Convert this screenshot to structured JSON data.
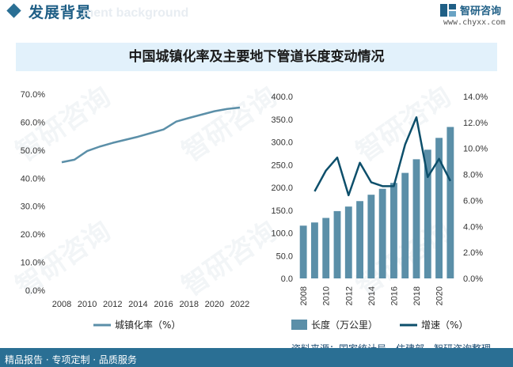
{
  "header": {
    "title": "发展背景",
    "ghost_text": "ment background",
    "logo_text": "智研咨询",
    "logo_url": "www.chyxx.com"
  },
  "watermark": "智研咨询",
  "chart_title": "中国城镇化率及主要地下管道长度变动情况",
  "colors": {
    "accent": "#2a6f94",
    "line_urban": "#5b8fa8",
    "bar": "#5b8fa8",
    "line_growth": "#0d4f6b"
  },
  "chart_data": [
    {
      "type": "line",
      "x": [
        2008,
        2009,
        2010,
        2011,
        2012,
        2013,
        2014,
        2015,
        2016,
        2017,
        2018,
        2019,
        2020,
        2021,
        2022
      ],
      "x_ticks": [
        "2008",
        "2010",
        "2012",
        "2014",
        "2016",
        "2018",
        "2020",
        "2022"
      ],
      "y_ticks": [
        "0.0%",
        "10.0%",
        "20.0%",
        "30.0%",
        "40.0%",
        "50.0%",
        "60.0%",
        "70.0%"
      ],
      "ylim": [
        0,
        70
      ],
      "series": [
        {
          "name": "城镇化率（%）",
          "values": [
            45.7,
            46.6,
            49.7,
            51.3,
            52.6,
            53.7,
            54.8,
            56.1,
            57.4,
            60.2,
            61.5,
            62.7,
            63.9,
            64.7,
            65.2
          ]
        }
      ],
      "legend": "bottom"
    },
    {
      "type": "bar",
      "categories": [
        "2008",
        "2009",
        "2010",
        "2011",
        "2012",
        "2013",
        "2014",
        "2015",
        "2016",
        "2017",
        "2018",
        "2019",
        "2020",
        "2021"
      ],
      "x_ticks": [
        "2008",
        "2010",
        "2012",
        "2014",
        "2016",
        "2018",
        "2020"
      ],
      "y_ticks_left": [
        "0.0",
        "50.0",
        "100.0",
        "150.0",
        "200.0",
        "250.0",
        "300.0",
        "350.0",
        "400.0"
      ],
      "y_ticks_right": [
        "0.0%",
        "2.0%",
        "4.0%",
        "6.0%",
        "8.0%",
        "10.0%",
        "12.0%",
        "14.0%"
      ],
      "ylim_left": [
        0,
        400
      ],
      "ylim_right": [
        0,
        14
      ],
      "series": [
        {
          "name": "长度（万公里）",
          "type": "bar",
          "axis": "left",
          "values": [
            116,
            123,
            133,
            148,
            158,
            170,
            184,
            197,
            210,
            232,
            262,
            283,
            309,
            333
          ]
        },
        {
          "name": "增速（%）",
          "type": "line",
          "axis": "right",
          "values": [
            null,
            6.7,
            8.3,
            9.3,
            6.4,
            8.9,
            7.4,
            7.1,
            7.1,
            10.3,
            12.4,
            7.8,
            9.2,
            7.5
          ]
        }
      ],
      "legend": "bottom"
    }
  ],
  "source": "资料来源：国家统计局、住建部、智研咨询整理",
  "footer": "精品报告 · 专项定制 · 品质服务"
}
